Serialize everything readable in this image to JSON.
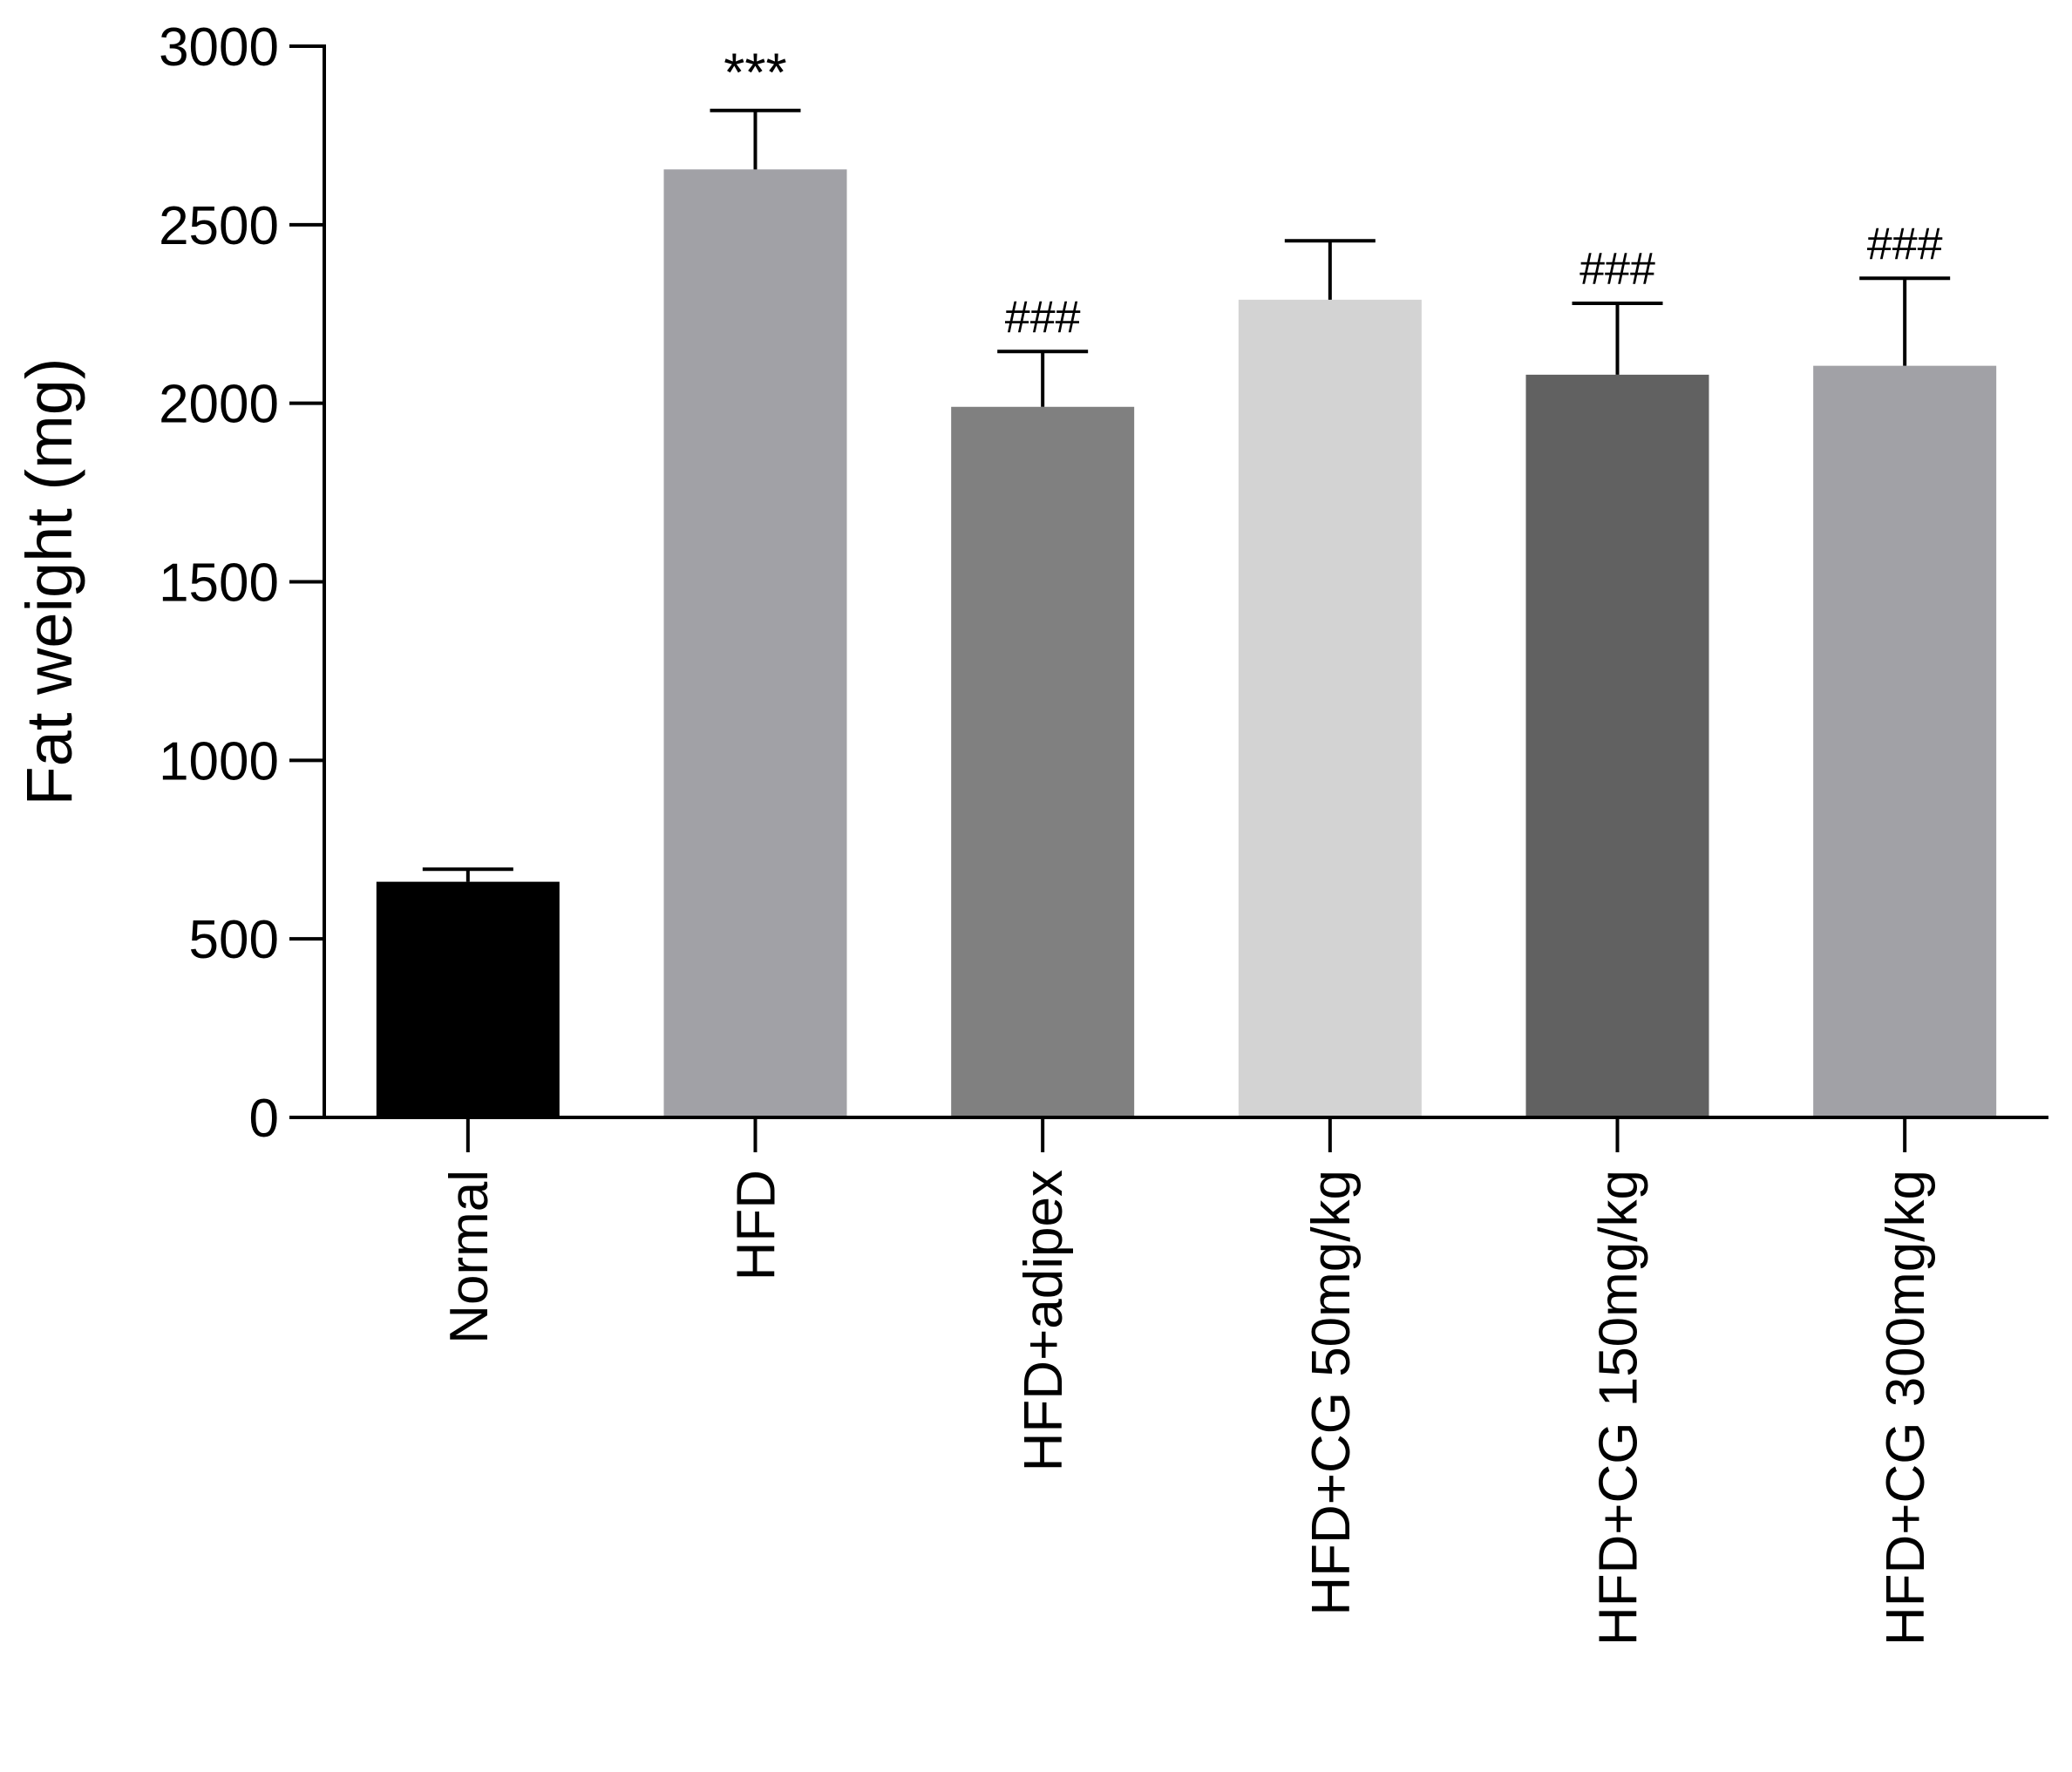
{
  "chart_data": {
    "type": "bar",
    "title": "",
    "xlabel": "",
    "ylabel": "Fat weight (mg)",
    "ylim": [
      0,
      3000
    ],
    "yticks": [
      0,
      500,
      1000,
      1500,
      2000,
      2500,
      3000
    ],
    "ytick_labels": [
      "0",
      "500",
      "1000",
      "1500",
      "2000",
      "2500",
      "3000"
    ],
    "categories": [
      "Normal",
      "HFD",
      "HFD+adipex",
      "HFD+CG 50mg/kg",
      "HFD+CG 150mg/kg",
      "HFD+CG 300mg/kg"
    ],
    "values": [
      660,
      2655,
      1990,
      2290,
      2080,
      2105
    ],
    "errors": [
      35,
      165,
      155,
      165,
      200,
      245
    ],
    "annotations": [
      "",
      "***",
      "###",
      "",
      "###",
      "###"
    ],
    "colors": [
      "#000000",
      "#a1a1a6",
      "#808080",
      "#d3d3d3",
      "#616161",
      "#a1a1a6"
    ],
    "grid": false,
    "legend": "none"
  }
}
